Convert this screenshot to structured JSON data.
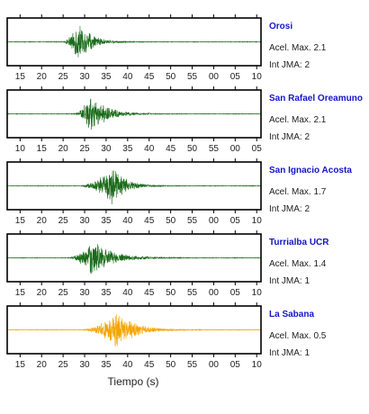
{
  "chart_data": {
    "type": "line",
    "xlabel": "Tiempo (s)",
    "x_tick_labels": [
      "15",
      "20",
      "25",
      "30",
      "35",
      "40",
      "45",
      "50",
      "55",
      "00",
      "05",
      "10"
    ],
    "x_tick_labels_panel2": [
      "10",
      "15",
      "20",
      "25",
      "30",
      "35",
      "40",
      "45",
      "50",
      "55",
      "00",
      "05"
    ],
    "panels": [
      {
        "name": "Orosi",
        "pga_label": "Acel. Max. 2.1",
        "intensity_label": "Int JMA: 2",
        "color": "#1a6b1a",
        "tick_labels": "x_tick_labels",
        "onset": 25.0,
        "peak_time": 28.5,
        "amplitude": 0.95,
        "decay": 3.0
      },
      {
        "name": "San Rafael Oreamuno",
        "pga_label": "Acel. Max. 2.1",
        "intensity_label": "Int JMA: 2",
        "color": "#1a6b1a",
        "tick_labels": "x_tick_labels_panel2",
        "onset": 27.5,
        "peak_time": 31.5,
        "amplitude": 0.95,
        "decay": 3.5
      },
      {
        "name": "San Ignacio Acosta",
        "pga_label": "Acel. Max. 1.7",
        "intensity_label": "Int JMA: 2",
        "color": "#1a6b1a",
        "tick_labels": "x_tick_labels",
        "onset": 29.0,
        "peak_time": 36.5,
        "amplitude": 0.95,
        "decay": 3.0
      },
      {
        "name": "Turrialba UCR",
        "pga_label": "Acel. Max. 1.4",
        "intensity_label": "Int JMA: 1",
        "color": "#1a6b1a",
        "tick_labels": "x_tick_labels",
        "onset": 26.5,
        "peak_time": 31.5,
        "amplitude": 0.95,
        "decay": 4.5
      },
      {
        "name": "La Sabana",
        "pga_label": "Acel. Max. 0.5",
        "intensity_label": "Int JMA: 1",
        "color": "#f5a400",
        "tick_labels": "x_tick_labels",
        "onset": 29.5,
        "peak_time": 37.5,
        "amplitude": 0.95,
        "decay": 4.0
      }
    ]
  }
}
